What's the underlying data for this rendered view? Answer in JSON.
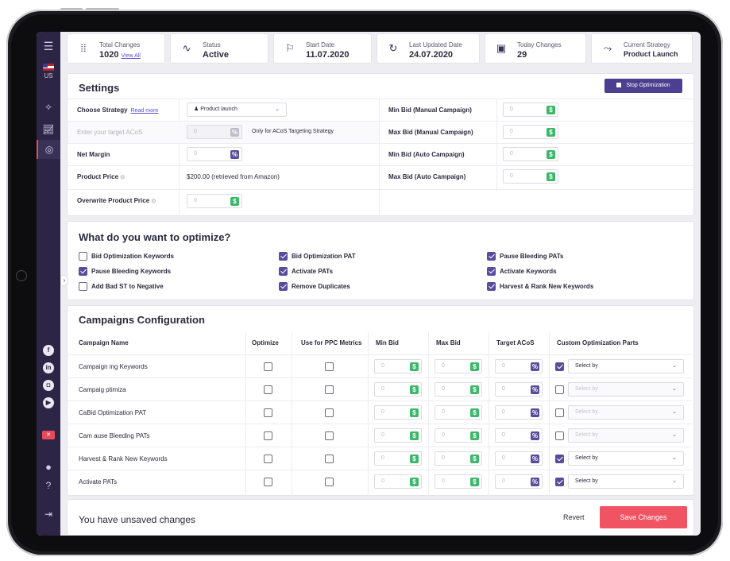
{
  "stats": [
    {
      "label": "Total Changes",
      "value": "1020",
      "link": "View All",
      "icon": "dots-grid-icon"
    },
    {
      "label": "Status",
      "value": "Active",
      "icon": "pulse-icon"
    },
    {
      "label": "Start Date",
      "value": "11.07.2020",
      "icon": "flag-icon"
    },
    {
      "label": "Last Updated Date",
      "value": "24.07.2020",
      "icon": "refresh-icon"
    },
    {
      "label": "Today Changes",
      "value": "29",
      "icon": "calendar-icon"
    },
    {
      "label": "Current Strategy",
      "value": "Product Launch",
      "icon": "route-icon"
    }
  ],
  "sidebar": {
    "country": "US",
    "social": [
      "f",
      "in"
    ]
  },
  "settings": {
    "title": "Settings",
    "stop_label": "Stop Optimization",
    "choose_strategy": "Choose Strategy",
    "read_more": "Read more",
    "strategy_value": "Product launch",
    "target_acos": "Enter your target ACoS",
    "target_acos_note": "Only for ACoS Targeting Strategy",
    "net_margin": "Net Margin",
    "product_price": "Product Price",
    "product_price_value": "$200.00 (retrieved from Amazon)",
    "overwrite_price": "Overwrite Product Price",
    "min_bid_manual": "Min Bid (Manual Campaign)",
    "max_bid_manual": "Max Bid (Manual Campaign)",
    "min_bid_auto": "Min Bid (Auto Campaign)",
    "max_bid_auto": "Max Bid (Auto Campaign)",
    "zero": "0"
  },
  "optimize": {
    "title": "What do you want to optimize?",
    "items": [
      {
        "label": "Bid Optimization Keywords",
        "checked": false
      },
      {
        "label": "Pause Bleeding Keywords",
        "checked": true
      },
      {
        "label": "Add Bad ST to Negative",
        "checked": false
      },
      {
        "label": "Bid Optimization PAT",
        "checked": true
      },
      {
        "label": "Activate PATs",
        "checked": true
      },
      {
        "label": "Remove Duplicates",
        "checked": true
      },
      {
        "label": "Pause Bleeding PATs",
        "checked": true
      },
      {
        "label": "Activate Keywords",
        "checked": true
      },
      {
        "label": "Harvest & Rank New Keywords",
        "checked": true
      }
    ]
  },
  "campaigns": {
    "title": "Campaigns Configuration",
    "headers": [
      "Campaign Name",
      "Optimize",
      "Use for PPC Metrics",
      "Min Bid",
      "Max Bid",
      "Target ACoS",
      "Custom Optimization Parts"
    ],
    "select_placeholder": "Select by",
    "rows": [
      {
        "name": "Campaign ing Keywords",
        "custom_checked": true
      },
      {
        "name": "Campaig ptimiza",
        "custom_checked": false
      },
      {
        "name": "CaBid Optimization PAT",
        "custom_checked": false
      },
      {
        "name": "Cam ause Bleeding PATs",
        "custom_checked": false
      },
      {
        "name": "Harvest & Rank New Keywords",
        "custom_checked": true
      },
      {
        "name": "Activate PATs",
        "custom_checked": true
      }
    ]
  },
  "footer": {
    "unsaved": "You have unsaved changes",
    "revert": "Revert",
    "save": "Save Changes"
  },
  "colors": {
    "sidebar": "#2d2545",
    "accent": "#5a4c9b",
    "save": "#f05463",
    "money": "#3cb86a"
  }
}
